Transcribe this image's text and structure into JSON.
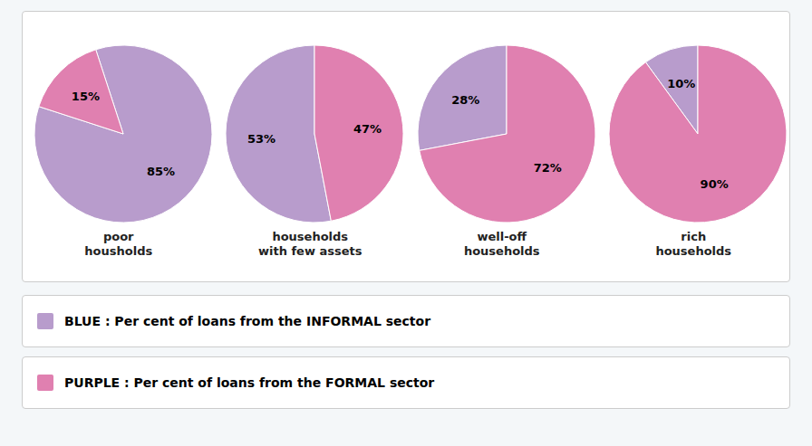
{
  "chart_data": {
    "type": "pie",
    "categories": [
      "BLUE : Per cent of loans from the INFORMAL sector",
      "PURPLE : Per cent of loans from the FORMAL sector"
    ],
    "colors": [
      "#b89ccc",
      "#e080b0"
    ],
    "data_labels": true,
    "series": [
      {
        "name": "poor\nhousholds",
        "values": [
          85,
          15
        ],
        "value_labels": [
          "85%",
          "15%"
        ]
      },
      {
        "name": "households\nwith few assets",
        "values": [
          53,
          47
        ],
        "value_labels": [
          "53%",
          "47%"
        ]
      },
      {
        "name": "well-off\nhouseholds",
        "values": [
          28,
          72
        ],
        "value_labels": [
          "28%",
          "72%"
        ]
      },
      {
        "name": "rich\nhouseholds",
        "values": [
          10,
          90
        ],
        "value_labels": [
          "10%",
          "90%"
        ]
      }
    ]
  }
}
